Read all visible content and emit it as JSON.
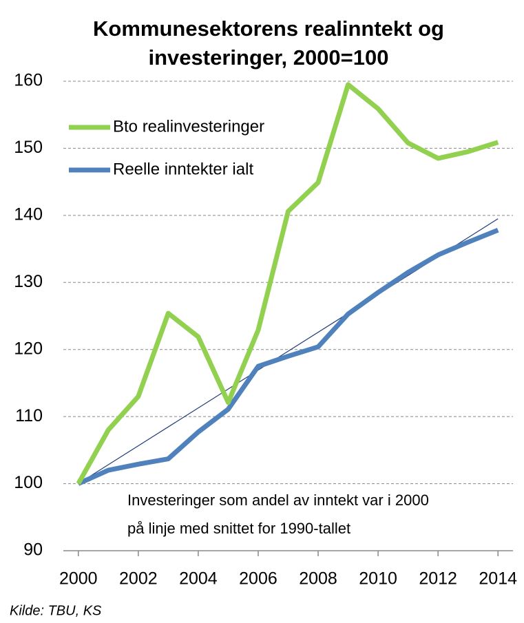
{
  "chart_data": {
    "type": "line",
    "title": [
      "Kommunesektorens realinntekt og",
      "investeringer, 2000=100"
    ],
    "x": [
      2000,
      2001,
      2002,
      2003,
      2004,
      2005,
      2006,
      2007,
      2008,
      2009,
      2010,
      2011,
      2012,
      2013,
      2014
    ],
    "series": [
      {
        "name": "Bto realinvesteringer",
        "color": "#92d050",
        "values": [
          100,
          108,
          113,
          125.4,
          121.9,
          112.1,
          122.9,
          140.6,
          144.9,
          159.5,
          155.9,
          150.8,
          148.5,
          149.5,
          150.9
        ]
      },
      {
        "name": "Reelle inntekter ialt",
        "color": "#4f81bd",
        "values": [
          100,
          102,
          102.9,
          103.7,
          107.7,
          111.1,
          117.5,
          119,
          120.4,
          125.3,
          128.5,
          131.5,
          134.1,
          136,
          137.8
        ]
      }
    ],
    "trend_line": {
      "x": [
        2000,
        2014
      ],
      "values": [
        100,
        139.5
      ],
      "color": "#1f3a7a"
    },
    "xlim": [
      1999.5,
      2014.5
    ],
    "xticks": [
      2000,
      2002,
      2004,
      2006,
      2008,
      2010,
      2012,
      2014
    ],
    "ylim": [
      90,
      160
    ],
    "yticks": [
      90,
      100,
      110,
      120,
      130,
      140,
      150,
      160
    ],
    "grid": true,
    "legend": "upper left",
    "annotation": [
      "Investeringer som andel av inntekt var i 2000",
      "på linje med snittet for 1990-tallet"
    ],
    "source": "Kilde: TBU, KS"
  }
}
